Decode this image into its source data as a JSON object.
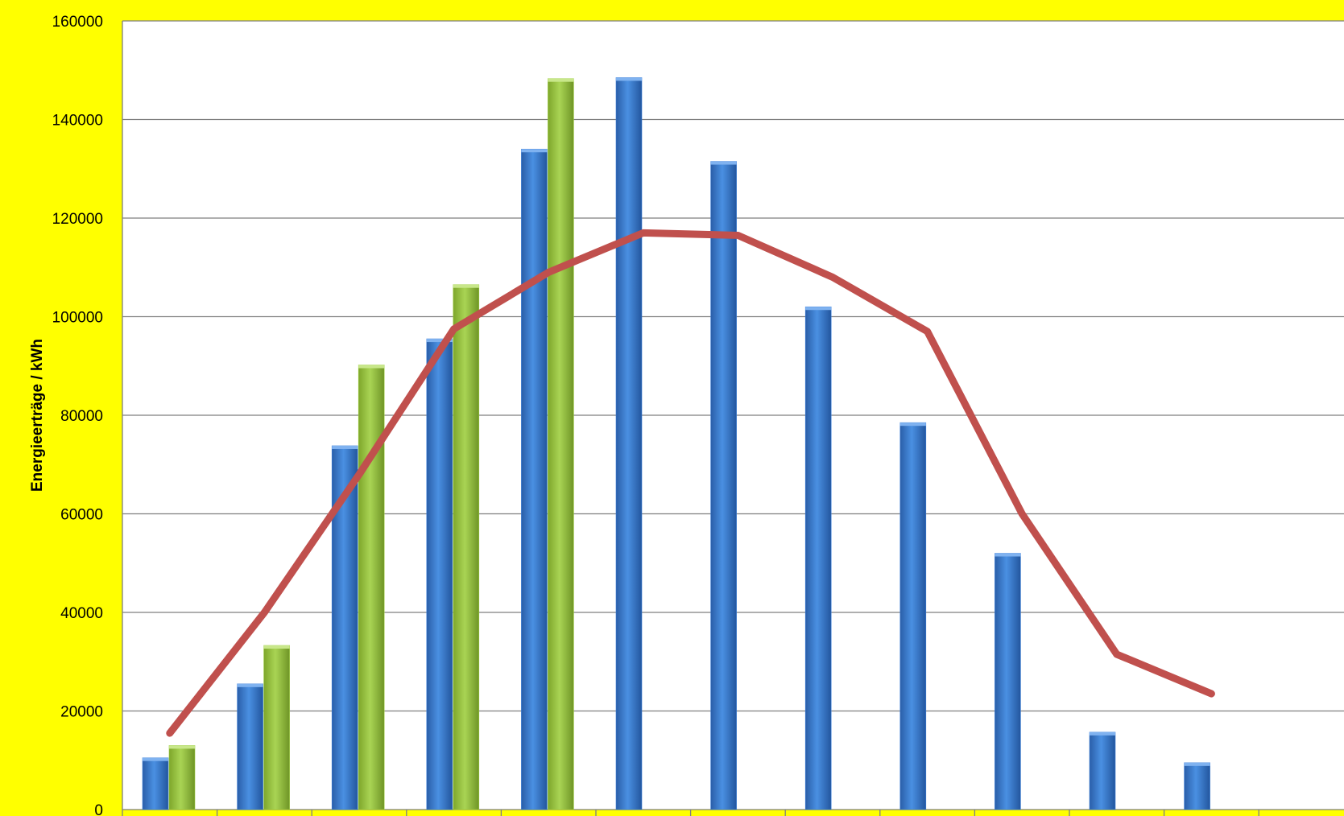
{
  "chart_data": {
    "type": "bar",
    "title": "",
    "xlabel": "",
    "ylabel": "Energieerträge / kWh",
    "ylim": [
      0,
      160000
    ],
    "yticks": [
      0,
      20000,
      40000,
      60000,
      80000,
      100000,
      120000,
      140000,
      160000
    ],
    "categories": [
      "",
      "",
      "",
      "",
      "",
      "",
      "",
      "",
      "",
      "",
      "",
      "",
      ""
    ],
    "grid": true,
    "legend": "none",
    "series": [
      {
        "type": "bar",
        "color": "#3b7dd8",
        "values": [
          10500,
          25500,
          73800,
          95500,
          134000,
          148500,
          131500,
          102000,
          78500,
          52000,
          15700,
          9500,
          null
        ]
      },
      {
        "type": "bar",
        "color": "#9ccb3f",
        "values": [
          13000,
          33300,
          90200,
          106500,
          148300,
          null,
          null,
          null,
          null,
          null,
          null,
          null,
          null
        ]
      },
      {
        "type": "line",
        "color": "#c0504d",
        "values": [
          15500,
          40000,
          68000,
          97500,
          109000,
          117000,
          116500,
          108000,
          97000,
          60000,
          31500,
          23500,
          null
        ]
      }
    ],
    "colors": {
      "background": "#ffff00",
      "plot_background": "#ffffff",
      "gridline": "#7f7f7f"
    }
  }
}
